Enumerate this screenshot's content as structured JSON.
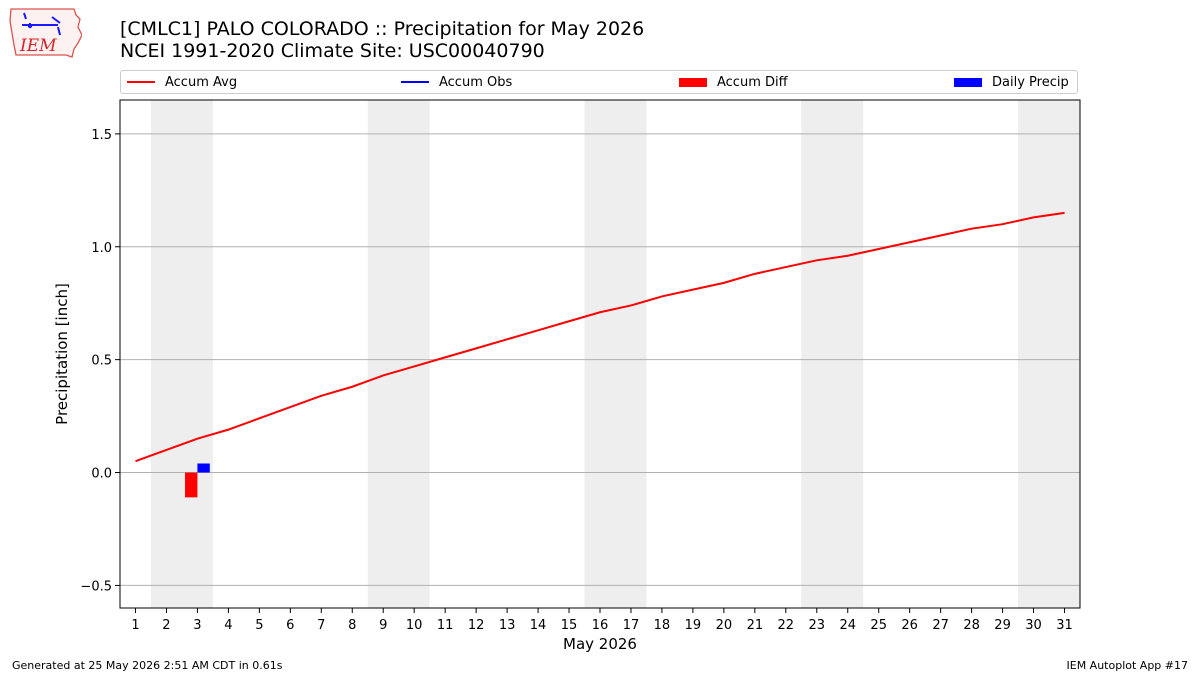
{
  "header": {
    "title_line1": "[CMLC1] PALO COLORADO :: Precipitation for May 2026",
    "title_line2": "NCEI 1991-2020 Climate Site: USC00040790"
  },
  "logo": {
    "text": "IEM"
  },
  "legend": {
    "items": [
      {
        "label": "Accum Avg",
        "color": "#ff0000",
        "kind": "line"
      },
      {
        "label": "Accum Obs",
        "color": "#0000ff",
        "kind": "line"
      },
      {
        "label": "Accum Diff",
        "color": "#ff0000",
        "kind": "patch"
      },
      {
        "label": "Daily Precip",
        "color": "#0000ff",
        "kind": "patch"
      }
    ]
  },
  "chart_data": {
    "type": "line",
    "xlabel": "May 2026",
    "ylabel": "Precipitation [inch]",
    "xlim": [
      0.5,
      31.5
    ],
    "ylim": [
      -0.6,
      1.65
    ],
    "yticks": [
      -0.5,
      0.0,
      0.5,
      1.0,
      1.5
    ],
    "ytick_labels": [
      "−0.5",
      "0.0",
      "0.5",
      "1.0",
      "1.5"
    ],
    "x": [
      1,
      2,
      3,
      4,
      5,
      6,
      7,
      8,
      9,
      10,
      11,
      12,
      13,
      14,
      15,
      16,
      17,
      18,
      19,
      20,
      21,
      22,
      23,
      24,
      25,
      26,
      27,
      28,
      29,
      30,
      31
    ],
    "xtick_labels": [
      "1",
      "2",
      "3",
      "4",
      "5",
      "6",
      "7",
      "8",
      "9",
      "10",
      "11",
      "12",
      "13",
      "14",
      "15",
      "16",
      "17",
      "18",
      "19",
      "20",
      "21",
      "22",
      "23",
      "24",
      "25",
      "26",
      "27",
      "28",
      "29",
      "30",
      "31"
    ],
    "grid": "horizontal",
    "weekend_shading": [
      [
        1.5,
        3.5
      ],
      [
        8.5,
        10.5
      ],
      [
        15.5,
        17.5
      ],
      [
        22.5,
        24.5
      ],
      [
        29.5,
        31.5
      ]
    ],
    "series": [
      {
        "name": "Accum Avg",
        "type": "line",
        "color": "#ff0000",
        "values": [
          0.05,
          0.1,
          0.15,
          0.19,
          0.24,
          0.29,
          0.34,
          0.38,
          0.43,
          0.47,
          0.51,
          0.55,
          0.59,
          0.63,
          0.67,
          0.71,
          0.74,
          0.78,
          0.81,
          0.84,
          0.88,
          0.91,
          0.94,
          0.96,
          0.99,
          1.02,
          1.05,
          1.08,
          1.1,
          1.13,
          1.15
        ]
      },
      {
        "name": "Accum Diff",
        "type": "bar",
        "color": "#ff0000",
        "x": [
          2.8
        ],
        "values": [
          -0.11
        ]
      },
      {
        "name": "Daily Precip",
        "type": "bar",
        "color": "#0000ff",
        "x": [
          3.2
        ],
        "values": [
          0.04
        ]
      }
    ]
  },
  "footer": {
    "left": "Generated at 25 May 2026 2:51 AM CDT in 0.61s",
    "right": "IEM Autoplot App #17"
  }
}
